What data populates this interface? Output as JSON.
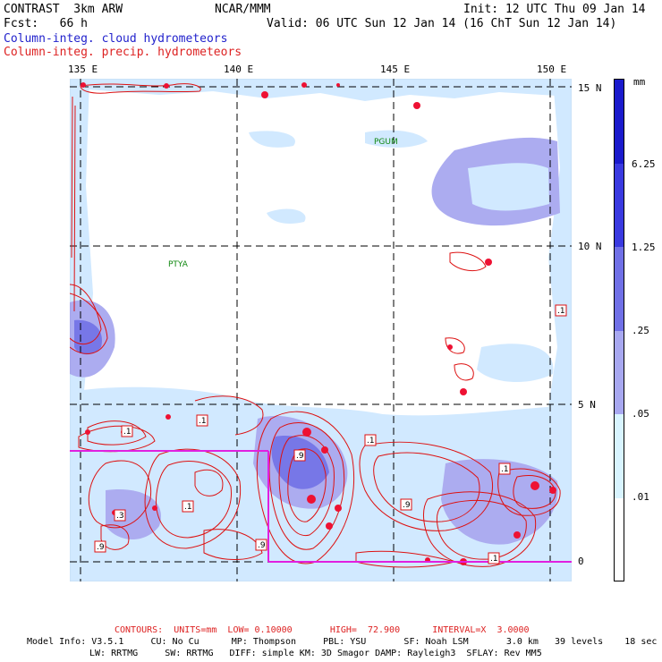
{
  "header": {
    "line1_left": "CONTRAST  3km ARW",
    "line1_center": "NCAR/MMM",
    "line1_right": "Init: 12 UTC Thu 09 Jan 14",
    "line2_left": "Fcst:   66 h",
    "line2_right": "Valid: 06 UTC Sun 12 Jan 14 (16 ChT Sun 12 Jan 14)",
    "field1": "Column-integ. cloud hydrometeors",
    "field2": "Column-integ. precip. hydrometeors"
  },
  "map": {
    "lon_labels": [
      "135 E",
      "140 E",
      "145 E",
      "150 E"
    ],
    "lat_labels": [
      "15 N",
      "10 N",
      "5 N",
      "0"
    ],
    "place_labels": [
      "PGUM",
      "PTYA"
    ],
    "contour_labels": [
      ".1",
      ".1",
      ".1",
      ".9",
      ".1",
      ".9",
      ".1",
      ".1",
      ".9",
      ".9",
      ".1",
      ".1",
      ".3",
      ".9"
    ]
  },
  "colorbar": {
    "unit": "mm",
    "labels": [
      "6.25",
      "1.25",
      ".25",
      ".05",
      ".01"
    ],
    "colors": [
      "#1a1acc",
      "#3a3ae0",
      "#7070e6",
      "#a8a8f0",
      "#cfe8ff",
      "#e8f8ff"
    ]
  },
  "footer": {
    "contours": "CONTOURS:  UNITS=mm  LOW= 0.10000       HIGH=  72.900      INTERVAL=X  3.0000",
    "model_line1": "Model Info: V3.5.1     CU: No Cu      MP: Thompson     PBL: YSU       SF: Noah LSM       3.0 km   39 levels    18 sec",
    "model_line2": "LW: RRTMG     SW: RRTMG   DIFF: simple KM: 3D Smagor DAMP: Rayleigh3  SFLAY: Rev MM5"
  }
}
